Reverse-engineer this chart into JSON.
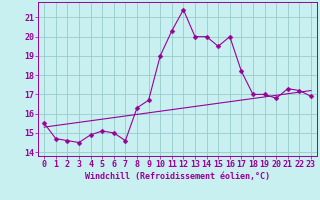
{
  "xlabel": "Windchill (Refroidissement éolien,°C)",
  "background_color": "#c8f0f0",
  "line_color": "#990099",
  "grid_color": "#99cccc",
  "xlim": [
    -0.5,
    23.5
  ],
  "ylim": [
    13.8,
    21.8
  ],
  "yticks": [
    14,
    15,
    16,
    17,
    18,
    19,
    20,
    21
  ],
  "xticks": [
    0,
    1,
    2,
    3,
    4,
    5,
    6,
    7,
    8,
    9,
    10,
    11,
    12,
    13,
    14,
    15,
    16,
    17,
    18,
    19,
    20,
    21,
    22,
    23
  ],
  "series1_x": [
    0,
    1,
    2,
    3,
    4,
    5,
    6,
    7,
    8,
    9,
    10,
    11,
    12,
    13,
    14,
    15,
    16,
    17,
    18,
    19,
    20,
    21,
    22,
    23
  ],
  "series1_y": [
    15.5,
    14.7,
    14.6,
    14.5,
    14.9,
    15.1,
    15.0,
    14.6,
    16.3,
    16.7,
    19.0,
    20.3,
    21.4,
    20.0,
    20.0,
    19.5,
    20.0,
    18.2,
    17.0,
    17.0,
    16.8,
    17.3,
    17.2,
    16.9
  ],
  "series2_x": [
    0,
    23
  ],
  "series2_y": [
    15.3,
    17.2
  ],
  "font_size": 6.0,
  "marker_size": 2.5,
  "lw": 0.8
}
